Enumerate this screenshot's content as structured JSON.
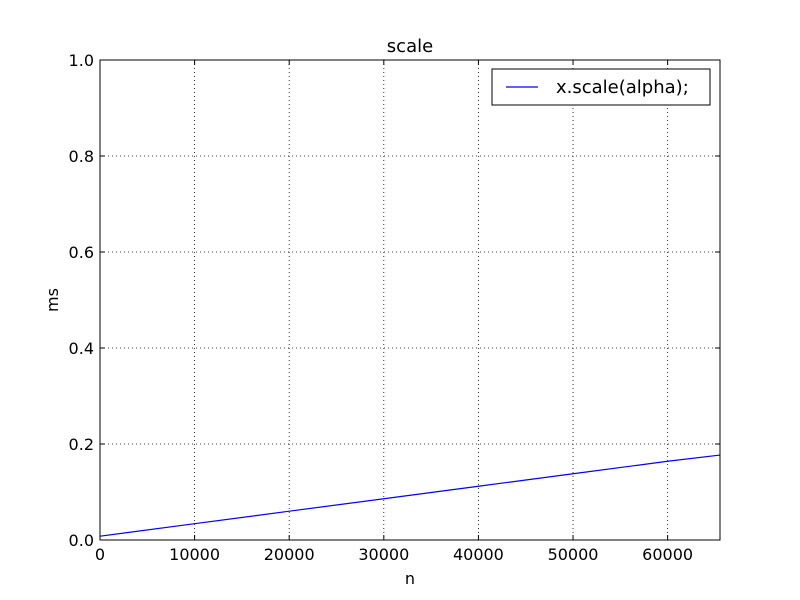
{
  "chart_data": {
    "type": "line",
    "title": "scale",
    "xlabel": "n",
    "ylabel": "ms",
    "xlim": [
      0,
      65536
    ],
    "ylim": [
      0,
      1.0
    ],
    "xticks": [
      0,
      10000,
      20000,
      30000,
      40000,
      50000,
      60000
    ],
    "xtick_labels": [
      "0",
      "10000",
      "20000",
      "30000",
      "40000",
      "50000",
      "60000"
    ],
    "yticks": [
      0,
      0.2,
      0.4,
      0.6,
      0.8,
      1.0
    ],
    "ytick_labels": [
      "0.0",
      "0.2",
      "0.4",
      "0.6",
      "0.8",
      "1.0"
    ],
    "grid": true,
    "legend_position": "top-right",
    "series": [
      {
        "name": "x.scale(alpha);",
        "color": "#0000ff",
        "x": [
          0,
          10000,
          20000,
          30000,
          40000,
          50000,
          60000,
          65536
        ],
        "y": [
          0.008,
          0.034,
          0.06,
          0.086,
          0.112,
          0.138,
          0.164,
          0.177
        ]
      }
    ]
  }
}
